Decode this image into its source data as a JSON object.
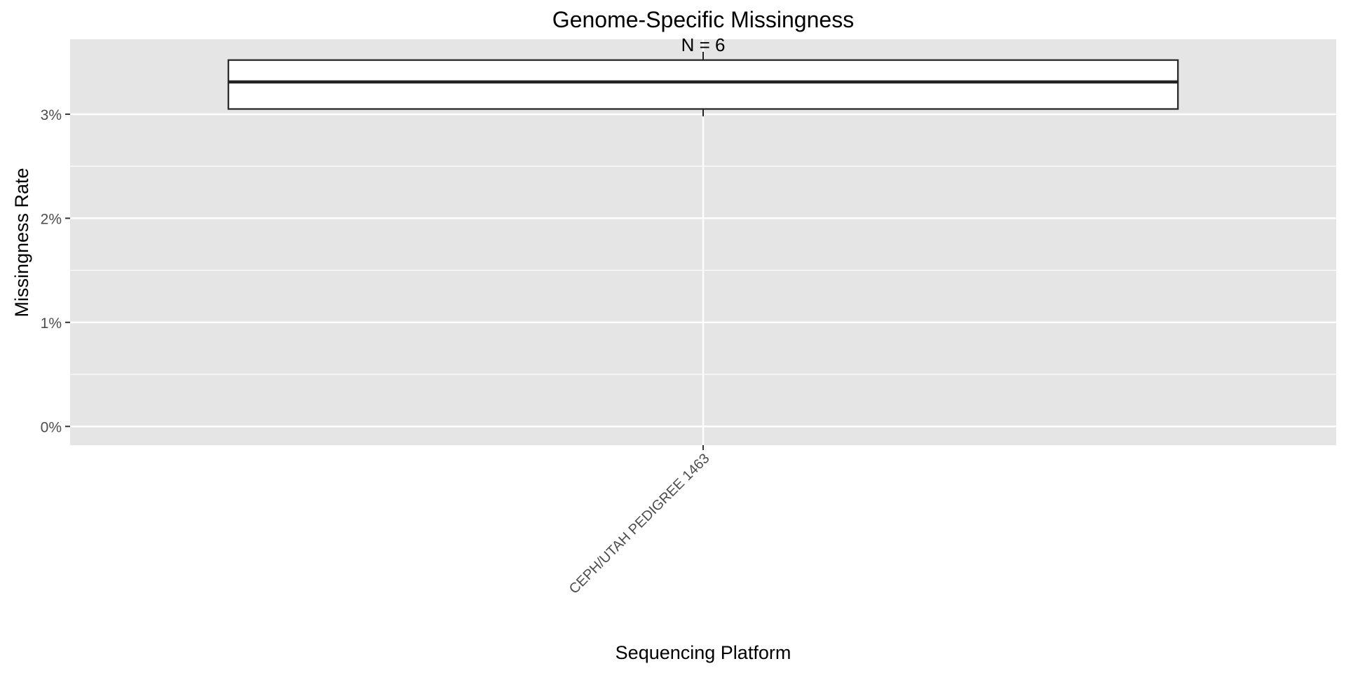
{
  "chart_data": {
    "type": "box",
    "title": "Genome-Specific Missingness",
    "xlabel": "Sequencing Platform",
    "ylabel": "Missingness Rate",
    "categories": [
      "CEPH/UTAH PEDIGREE 1463"
    ],
    "boxes": [
      {
        "category": "CEPH/UTAH PEDIGREE 1463",
        "whisker_low": 2.98,
        "q1": 3.05,
        "median": 3.31,
        "q3": 3.52,
        "whisker_high": 3.6,
        "annotation": "N = 6"
      }
    ],
    "y_ticks": [
      {
        "value": 0,
        "label": "0%"
      },
      {
        "value": 1,
        "label": "1%"
      },
      {
        "value": 2,
        "label": "2%"
      },
      {
        "value": 3,
        "label": "3%"
      }
    ],
    "ylim": [
      -0.18,
      3.72
    ],
    "grid": true,
    "colors": {
      "panel_background": "#e5e5e5",
      "gridline": "#ffffff",
      "box_fill": "#ffffff",
      "box_stroke": "#222222",
      "text": "#000000",
      "tick_text": "#4d4d4d"
    }
  }
}
